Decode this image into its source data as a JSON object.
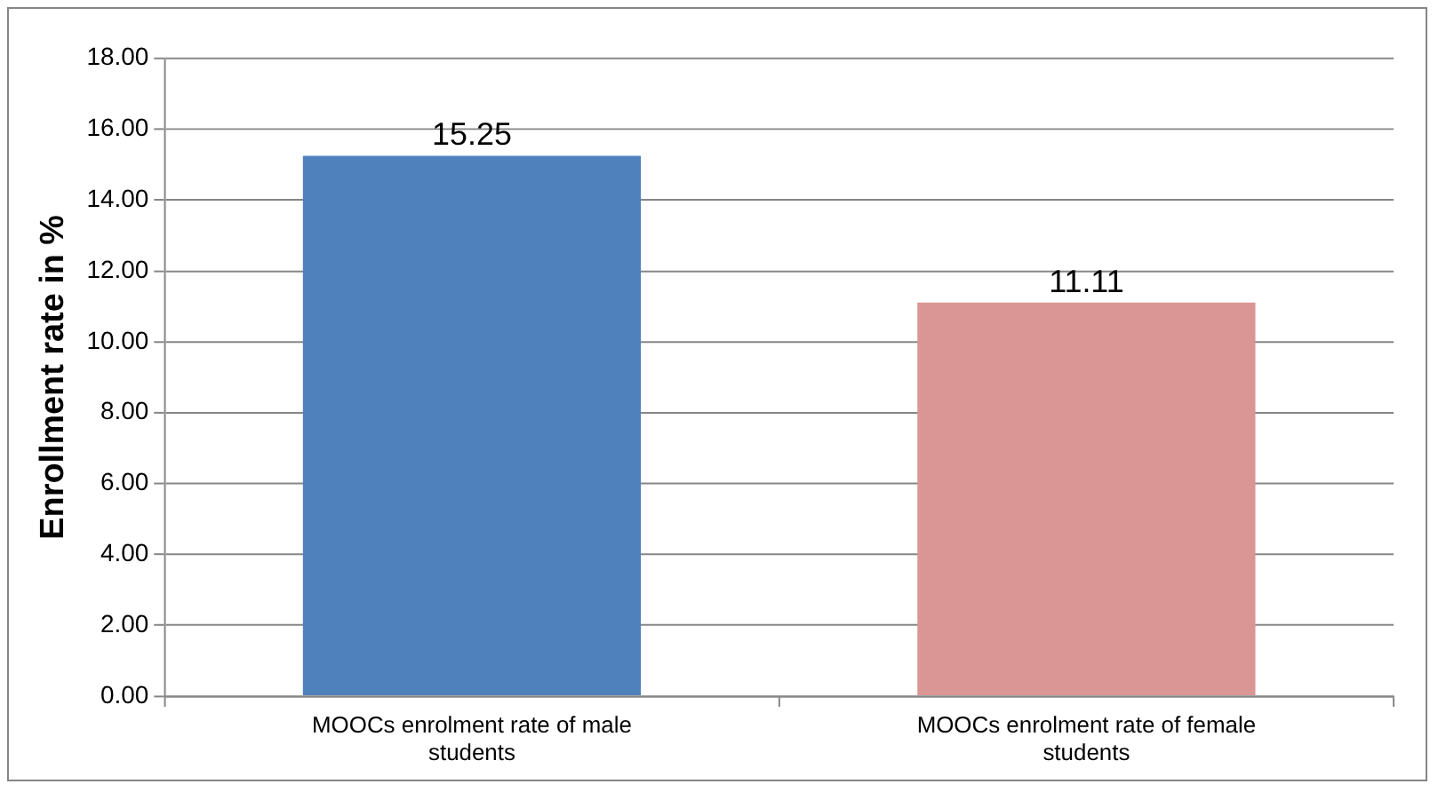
{
  "chart_data": {
    "type": "bar",
    "ylabel": "Enrollment rate in %",
    "categories": [
      "MOOCs enrolment rate of male students",
      "MOOCs enrolment rate of female students"
    ],
    "values": [
      15.25,
      11.11
    ],
    "colors": [
      "#4f81bd",
      "#d99694"
    ],
    "ylim": [
      0,
      18
    ],
    "yticks": [
      {
        "value": 0,
        "label": "0.00"
      },
      {
        "value": 2,
        "label": "2.00"
      },
      {
        "value": 4,
        "label": "4.00"
      },
      {
        "value": 6,
        "label": "6.00"
      },
      {
        "value": 8,
        "label": "8.00"
      },
      {
        "value": 10,
        "label": "10.00"
      },
      {
        "value": 12,
        "label": "12.00"
      },
      {
        "value": 14,
        "label": "14.00"
      },
      {
        "value": 16,
        "label": "16.00"
      },
      {
        "value": 18,
        "label": "18.00"
      }
    ],
    "grid": "y",
    "legend": false,
    "data_labels": true
  }
}
